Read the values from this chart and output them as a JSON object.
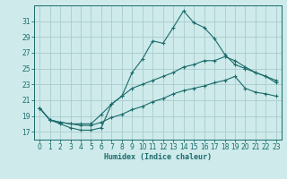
{
  "title": "",
  "xlabel": "Humidex (Indice chaleur)",
  "bg_color": "#ceeaea",
  "line_color": "#1a6b6b",
  "grid_color": "#a8cccc",
  "xlim": [
    -0.5,
    23.5
  ],
  "ylim": [
    16.0,
    33.0
  ],
  "xticks": [
    0,
    1,
    2,
    3,
    4,
    5,
    6,
    7,
    8,
    9,
    10,
    11,
    12,
    13,
    14,
    15,
    16,
    17,
    18,
    19,
    20,
    21,
    22,
    23
  ],
  "yticks": [
    17,
    19,
    21,
    23,
    25,
    27,
    29,
    31
  ],
  "line1": [
    20.0,
    18.5,
    18.0,
    17.5,
    17.2,
    17.2,
    17.5,
    20.5,
    21.5,
    24.5,
    26.2,
    28.5,
    28.2,
    30.2,
    32.3,
    30.8,
    30.2,
    28.8,
    26.8,
    25.5,
    25.0,
    24.5,
    24.0,
    23.2
  ],
  "line2": [
    20.0,
    18.5,
    18.2,
    18.0,
    18.0,
    18.0,
    19.2,
    20.5,
    21.5,
    22.5,
    23.0,
    23.5,
    24.0,
    24.5,
    25.2,
    25.5,
    26.0,
    26.0,
    26.5,
    26.0,
    25.2,
    24.5,
    24.0,
    23.5
  ],
  "line3": [
    20.0,
    18.5,
    18.2,
    18.0,
    17.8,
    17.8,
    18.2,
    18.8,
    19.2,
    19.8,
    20.2,
    20.8,
    21.2,
    21.8,
    22.2,
    22.5,
    22.8,
    23.2,
    23.5,
    24.0,
    22.5,
    22.0,
    21.8,
    21.5
  ]
}
